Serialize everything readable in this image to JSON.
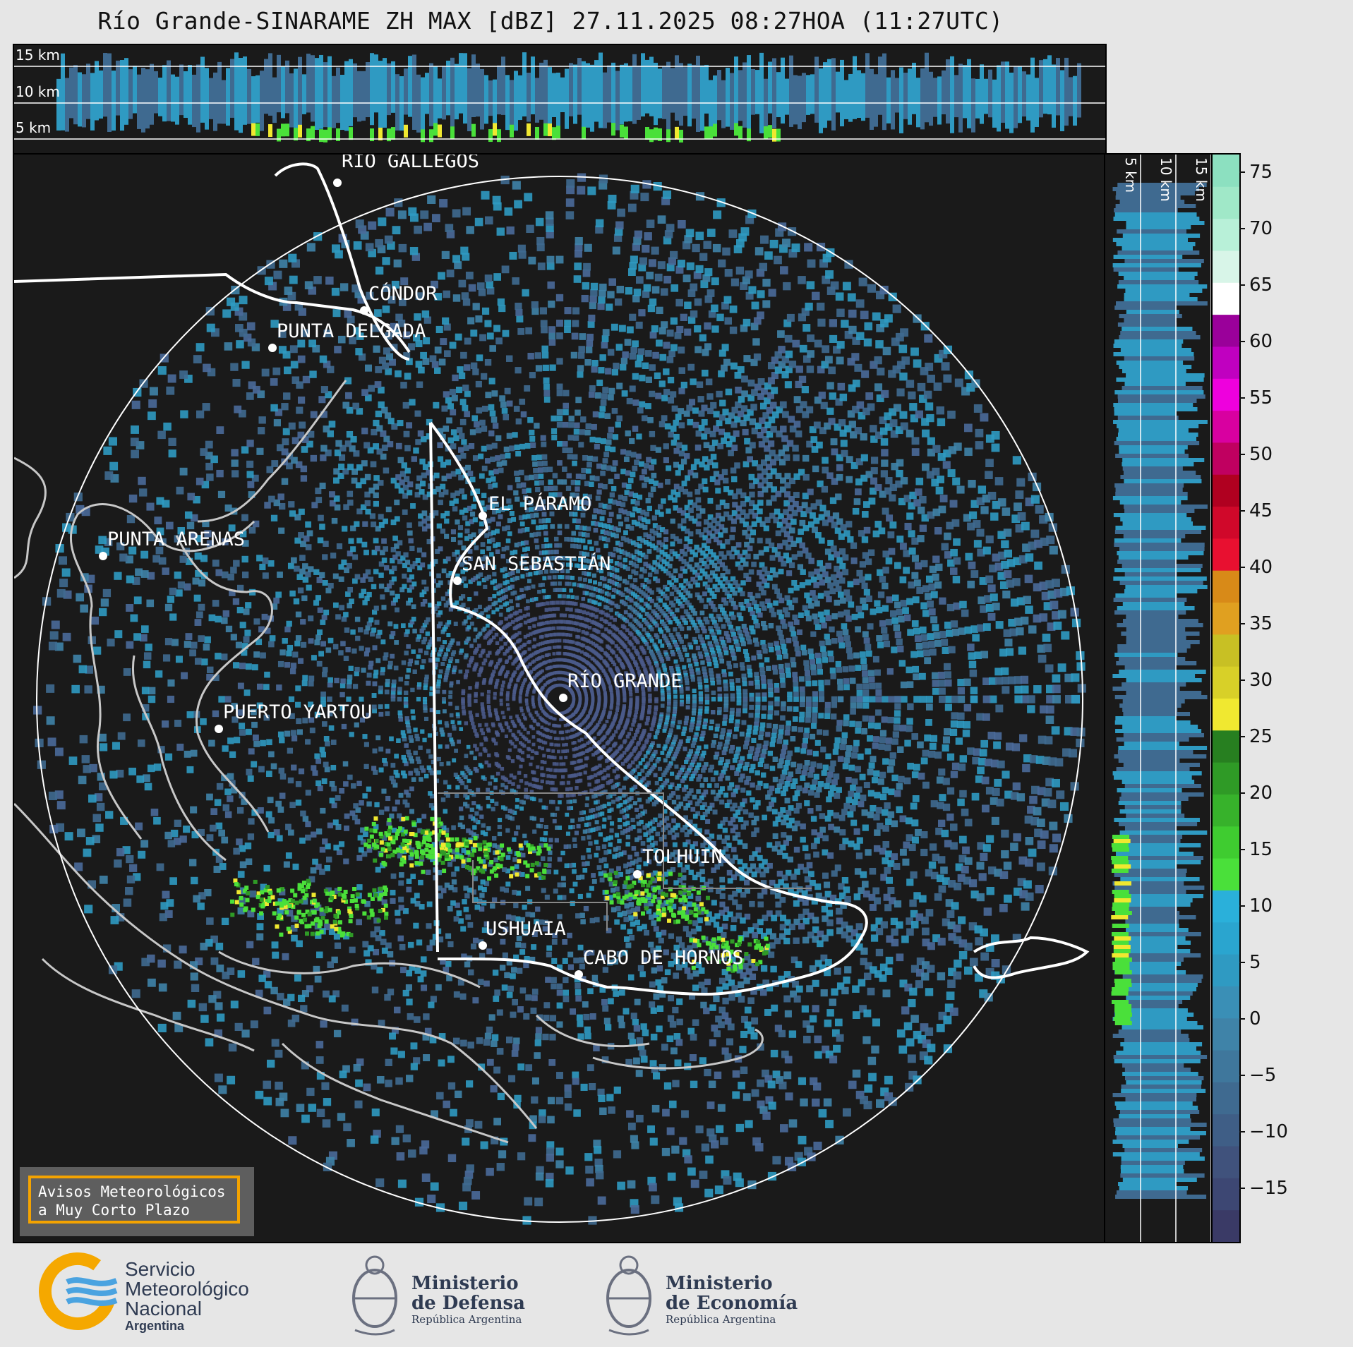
{
  "title": "Río Grande-SINARAME ZH MAX [dBZ] 27.11.2025 08:27HOA (11:27UTC)",
  "top_panel": {
    "altitudes": [
      "15 km",
      "10 km",
      "5 km"
    ]
  },
  "side_panel": {
    "altitudes": [
      "5 km",
      "10 km",
      "15 km"
    ]
  },
  "cities": [
    {
      "name": "RÍO GALLEGOS"
    },
    {
      "name": "CÓNDOR"
    },
    {
      "name": "PUNTA DELGADA"
    },
    {
      "name": "PUNTA ARENAS"
    },
    {
      "name": "EL PÁRAMO"
    },
    {
      "name": "SAN SEBASTIÁN"
    },
    {
      "name": "RÍO GRANDE"
    },
    {
      "name": "PUERTO YARTOU"
    },
    {
      "name": "TOLHUIN"
    },
    {
      "name": "USHUAIA"
    },
    {
      "name": "CABO DE HORNOS"
    }
  ],
  "colorbar": {
    "unit": "dBZ",
    "ticks": [
      "75",
      "70",
      "65",
      "60",
      "55",
      "50",
      "45",
      "40",
      "35",
      "30",
      "25",
      "20",
      "15",
      "10",
      "5",
      "0",
      "−5",
      "−10",
      "−15"
    ],
    "colors": [
      "#3a3a66",
      "#3d4773",
      "#40527c",
      "#3f5e86",
      "#3f6a90",
      "#3f779c",
      "#3f83a8",
      "#3a8fb6",
      "#2f9ac2",
      "#2aa5cf",
      "#2ab0da",
      "#4ae03a",
      "#3fcc30",
      "#37b22b",
      "#2f9a26",
      "#277f20",
      "#f0e830",
      "#d8d028",
      "#c8c024",
      "#e0a020",
      "#d88a18",
      "#e81030",
      "#d0082a",
      "#b00020",
      "#c00060",
      "#d800a0",
      "#ee00dd",
      "#c000c0",
      "#9a009a",
      "#ffffff",
      "#d8f5e8",
      "#b8f0d8",
      "#a0e8c8",
      "#8ce0c0"
    ],
    "palette": {
      "negative": "#3a3a66",
      "weak": "#3f6a90",
      "light": "#2f9ac2",
      "moderate": "#4ae03a",
      "strong": "#f0e830",
      "heavy": "#e81030",
      "extreme": "#ee00dd"
    }
  },
  "warning": {
    "line1": "Avisos Meteorológicos",
    "line2": "a Muy Corto Plazo"
  },
  "logos": {
    "smn": {
      "line1": "Servicio",
      "line2": "Meteorológico",
      "line3": "Nacional",
      "line4": "Argentina"
    },
    "defensa": {
      "line1": "Ministerio",
      "line2": "de Defensa",
      "line3": "República Argentina"
    },
    "economia": {
      "line1": "Ministerio",
      "line2": "de Economía",
      "line3": "República Argentina"
    }
  }
}
